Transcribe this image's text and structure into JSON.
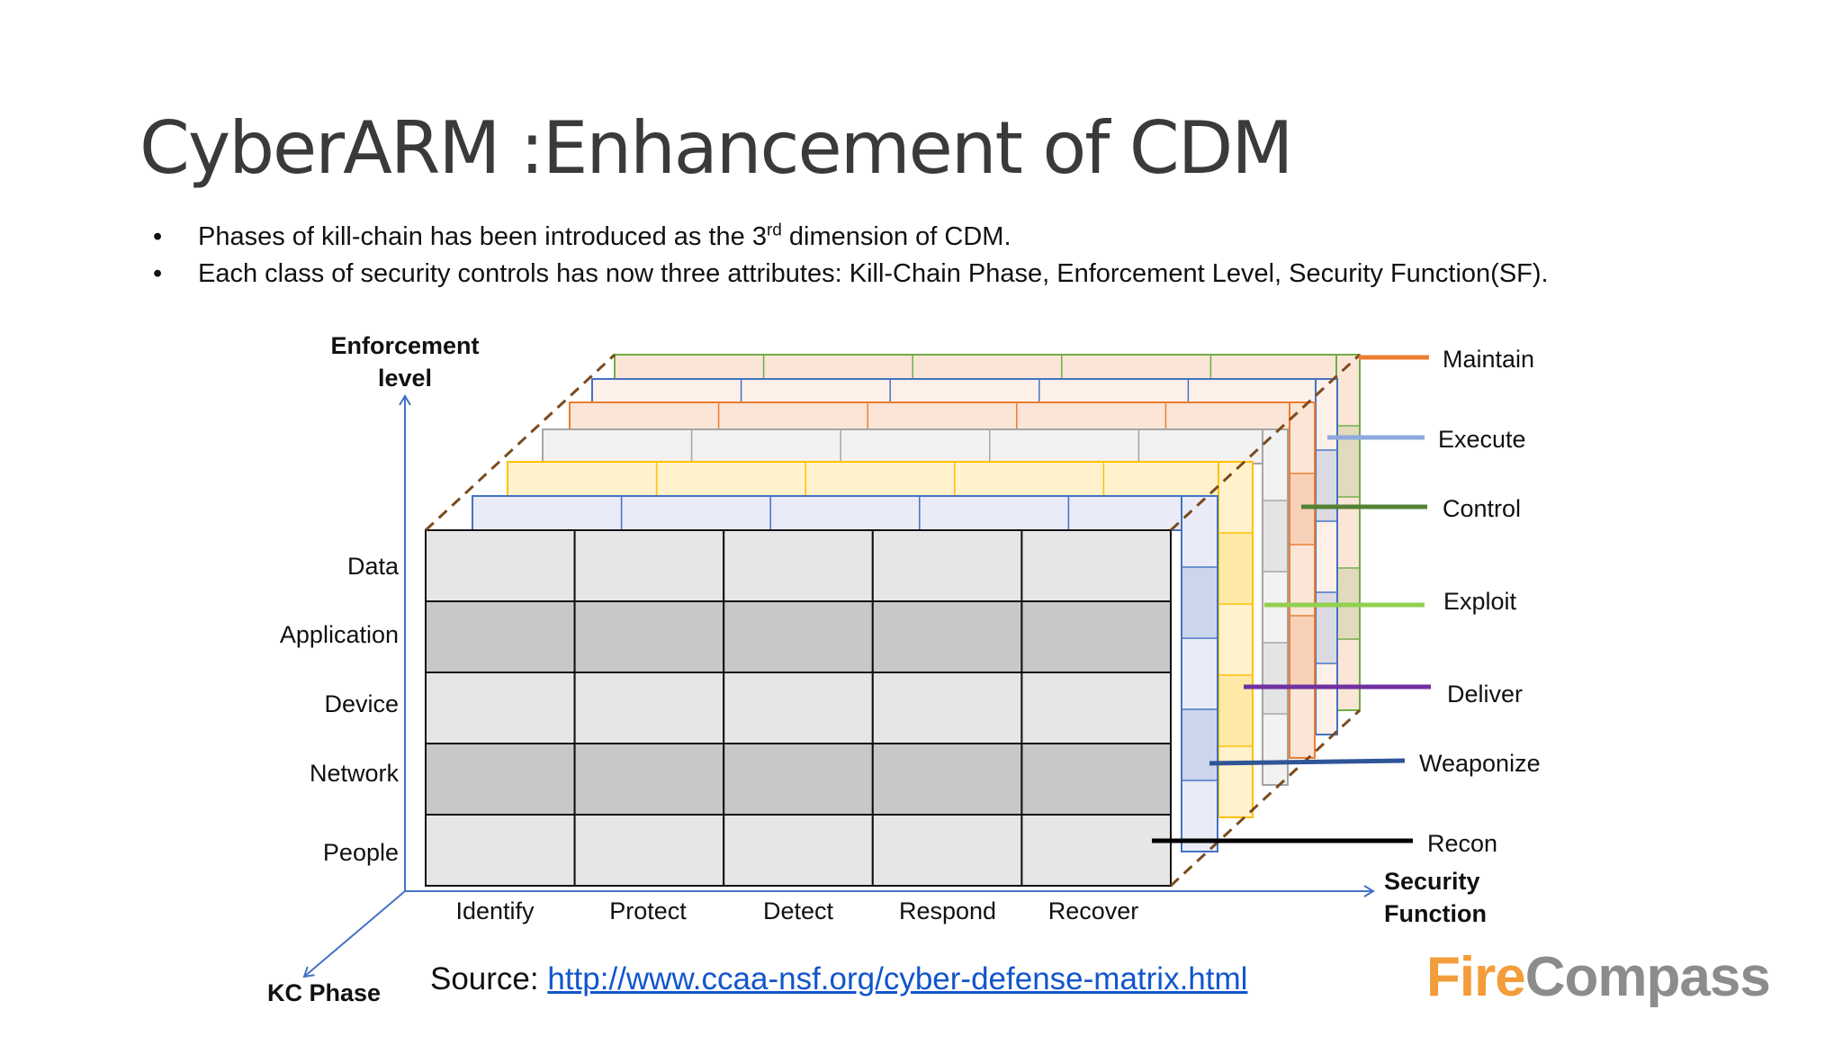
{
  "slide": {
    "title": "CyberARM :Enhancement of CDM",
    "bullets": [
      {
        "before": "Phases of kill-chain has been introduced as the 3",
        "sup": "rd",
        "after": " dimension of CDM."
      },
      {
        "before": "Each class of security controls has now three attributes: Kill-Chain Phase, Enforcement Level, Security Function(SF).",
        "sup": "",
        "after": ""
      }
    ]
  },
  "diagram": {
    "y_axis_title": [
      "Enforcement",
      "level"
    ],
    "x_axis_title": [
      "Security",
      "Function"
    ],
    "z_axis_title": "KC Phase",
    "enforcement_levels": [
      "Data",
      "Application",
      "Device",
      "Network",
      "People"
    ],
    "security_functions": [
      "Identify",
      "Protect",
      "Detect",
      "Respond",
      "Recover"
    ],
    "kill_chain_phases": [
      {
        "name": "Maintain",
        "color": "#ed7d31"
      },
      {
        "name": "Execute",
        "color": "#8faadc"
      },
      {
        "name": "Control",
        "color": "#548235"
      },
      {
        "name": "Exploit",
        "color": "#92d050"
      },
      {
        "name": "Deliver",
        "color": "#7030a0"
      },
      {
        "name": "Weaponize",
        "color": "#2f5597"
      },
      {
        "name": "Recon",
        "color": "#000000"
      }
    ],
    "layer_colors": [
      {
        "stroke": "#70ad47",
        "fill": "#fbe5d6"
      },
      {
        "stroke": "#4472c4",
        "fill": "#fdf0e8"
      },
      {
        "stroke": "#ed7d31",
        "fill": "#fbe5d6"
      },
      {
        "stroke": "#a5a5a5",
        "fill": "#f2f2f2"
      },
      {
        "stroke": "#ffc000",
        "fill": "#fff2cc"
      },
      {
        "stroke": "#4472c4",
        "fill": "#e9ecf7"
      }
    ]
  },
  "source": {
    "label": "Source: ",
    "url": "http://www.ccaa-nsf.org/cyber-defense-matrix.html"
  },
  "logo": {
    "part1": "Fire",
    "part2": "Compass"
  }
}
